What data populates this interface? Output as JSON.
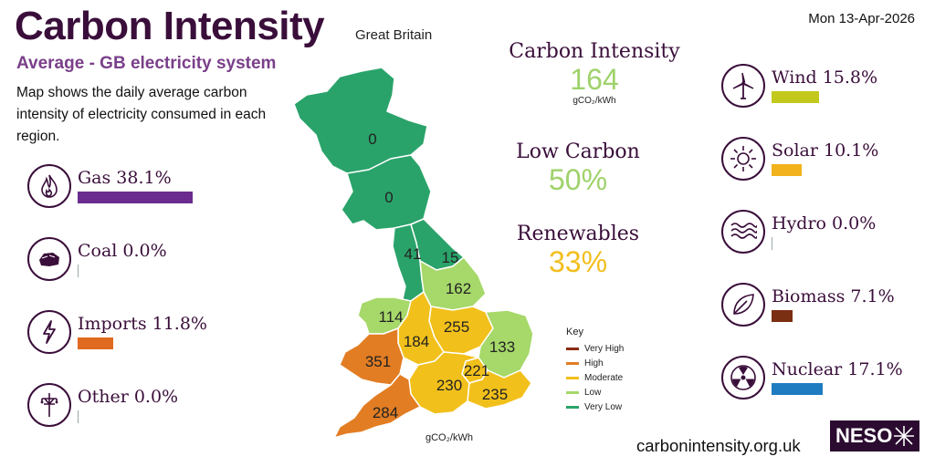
{
  "header": {
    "title": "Carbon Intensity",
    "region": "Great Britain",
    "subtitle": "Average - GB electricity system",
    "description": "Map shows the daily average carbon intensity of electricity consumed in each region.",
    "date": "Mon 13-Apr-2026"
  },
  "fuels_left": [
    {
      "label": "Gas 38.1%",
      "icon": "flame-icon",
      "percent": 38.1,
      "color": "#6a2c8e"
    },
    {
      "label": "Coal 0.0%",
      "icon": "coal-icon",
      "percent": 0.0,
      "color": "#999999"
    },
    {
      "label": "Imports 11.8%",
      "icon": "lightning-icon",
      "percent": 11.8,
      "color": "#e06a1f"
    },
    {
      "label": "Other 0.0%",
      "icon": "pylon-icon",
      "percent": 0.0,
      "color": "#999999"
    }
  ],
  "fuels_right": [
    {
      "label": "Wind 15.8%",
      "icon": "wind-turbine-icon",
      "percent": 15.8,
      "color": "#c3c81d"
    },
    {
      "label": "Solar 10.1%",
      "icon": "sun-icon",
      "percent": 10.1,
      "color": "#f2b21c"
    },
    {
      "label": "Hydro 0.0%",
      "icon": "water-icon",
      "percent": 0.0,
      "color": "#8ab4d9"
    },
    {
      "label": "Biomass 7.1%",
      "icon": "leaf-icon",
      "percent": 7.1,
      "color": "#7a2e12"
    },
    {
      "label": "Nuclear 17.1%",
      "icon": "nuclear-icon",
      "percent": 17.1,
      "color": "#1f7cc1"
    }
  ],
  "stats": {
    "intensity": {
      "heading": "Carbon Intensity",
      "value": "164",
      "unit": "gCO₂/kWh",
      "color": "#9fd26b"
    },
    "low_carbon": {
      "heading": "Low Carbon",
      "value": "50%",
      "color": "#9fd26b"
    },
    "renewables": {
      "heading": "Renewables",
      "value": "33%",
      "color": "#f2be1c"
    }
  },
  "map": {
    "regions": [
      {
        "name": "North Scotland",
        "value": "0",
        "color": "#2aa36a"
      },
      {
        "name": "South Scotland",
        "value": "0",
        "color": "#2aa36a"
      },
      {
        "name": "North West England",
        "value": "41",
        "color": "#2aa36a"
      },
      {
        "name": "North East England",
        "value": "15",
        "color": "#2aa36a"
      },
      {
        "name": "Yorkshire",
        "value": "162",
        "color": "#a6d86a"
      },
      {
        "name": "North Wales",
        "value": "114",
        "color": "#a6d86a"
      },
      {
        "name": "East Midlands",
        "value": "255",
        "color": "#f2c01b"
      },
      {
        "name": "West Midlands",
        "value": "184",
        "color": "#f2c01b"
      },
      {
        "name": "East England",
        "value": "133",
        "color": "#a6d86a"
      },
      {
        "name": "South Wales",
        "value": "351",
        "color": "#e27d23"
      },
      {
        "name": "London",
        "value": "221",
        "color": "#f2c01b"
      },
      {
        "name": "South England",
        "value": "230",
        "color": "#f2c01b"
      },
      {
        "name": "South East England",
        "value": "235",
        "color": "#f2c01b"
      },
      {
        "name": "South West England",
        "value": "284",
        "color": "#e27d23"
      }
    ],
    "unit": "gCO₂/kWh"
  },
  "key": {
    "title": "Key",
    "items": [
      {
        "label": "Very High",
        "color": "#8b2a13"
      },
      {
        "label": "High",
        "color": "#e27d23"
      },
      {
        "label": "Moderate",
        "color": "#f2c01b"
      },
      {
        "label": "Low",
        "color": "#a6d86a"
      },
      {
        "label": "Very Low",
        "color": "#2aa36a"
      }
    ]
  },
  "footer": {
    "site": "carbonintensity.org.uk",
    "logo": "NESO"
  }
}
